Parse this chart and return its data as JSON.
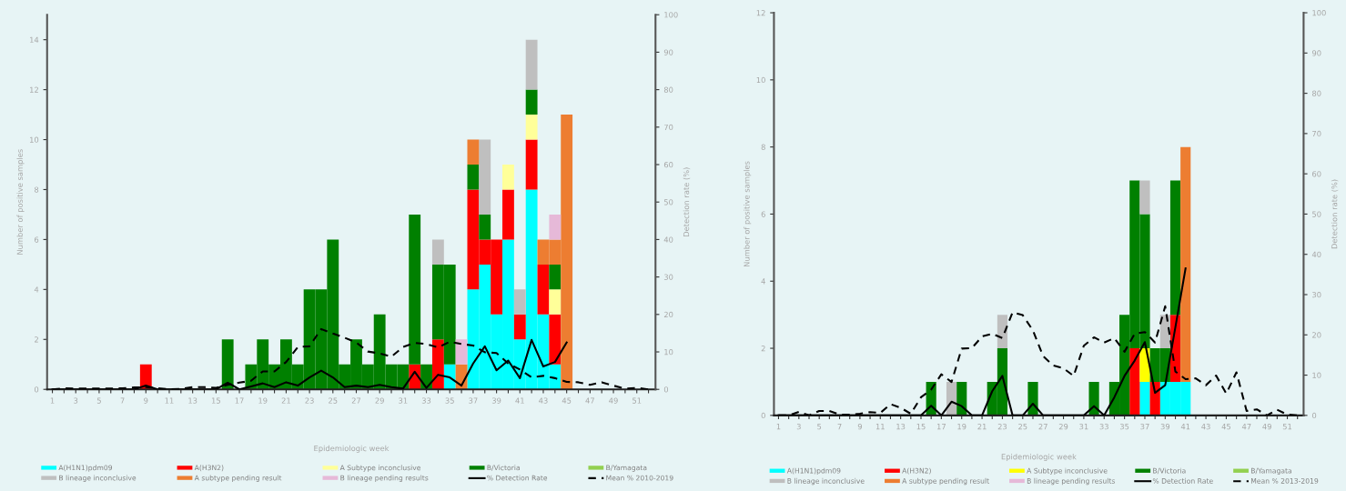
{
  "chart_data": [
    {
      "type": "bar",
      "stacked": true,
      "xlabel": "Epidemiologic week",
      "ylabel": "Number of positive samples",
      "y2label": "Detection rate (%)",
      "categories": [
        "1",
        null,
        "3",
        null,
        "5",
        null,
        "7",
        null,
        "9",
        null,
        "11",
        null,
        "13",
        null,
        "15",
        null,
        "17",
        null,
        "19",
        null,
        "21",
        null,
        "23",
        null,
        "25",
        null,
        "27",
        null,
        "29",
        null,
        "31",
        null,
        "33",
        null,
        "35",
        null,
        "37",
        null,
        "39",
        null,
        "41",
        null,
        "43",
        null,
        "45",
        null,
        "47",
        null,
        "49",
        null,
        "51",
        null
      ],
      "ylim": [
        0,
        15
      ],
      "yticks": [
        0,
        2,
        4,
        6,
        8,
        10,
        12,
        14
      ],
      "y2lim": [
        0,
        100
      ],
      "y2ticks": [
        0,
        10,
        20,
        30,
        40,
        50,
        60,
        70,
        80,
        90,
        100
      ],
      "legend": "bottom",
      "grid": false,
      "series": [
        {
          "name": "A(H1N1)pdm09",
          "color": "#00ffff",
          "values": [
            null,
            null,
            null,
            null,
            null,
            null,
            null,
            null,
            null,
            null,
            null,
            null,
            null,
            null,
            null,
            null,
            null,
            null,
            null,
            null,
            null,
            null,
            null,
            null,
            null,
            null,
            null,
            null,
            null,
            null,
            null,
            null,
            null,
            null,
            1,
            null,
            4,
            5,
            3,
            6,
            2,
            8,
            3,
            1,
            null,
            null,
            null,
            null,
            null,
            null,
            null,
            null
          ]
        },
        {
          "name": "A(H3N2)",
          "color": "#ff0000",
          "values": [
            null,
            null,
            null,
            null,
            null,
            null,
            null,
            null,
            1,
            null,
            null,
            null,
            null,
            null,
            null,
            null,
            null,
            null,
            null,
            null,
            null,
            null,
            null,
            null,
            null,
            null,
            null,
            null,
            null,
            null,
            null,
            1,
            null,
            2,
            null,
            null,
            4,
            1,
            3,
            2,
            1,
            2,
            2,
            2,
            null,
            null,
            null,
            null,
            null,
            null,
            null,
            null
          ]
        },
        {
          "name": "A Subtype inconclusive",
          "color": "#ffff99",
          "values": [
            null,
            null,
            null,
            null,
            null,
            null,
            null,
            null,
            null,
            null,
            null,
            null,
            null,
            null,
            null,
            null,
            null,
            null,
            null,
            null,
            null,
            null,
            null,
            null,
            null,
            null,
            null,
            null,
            null,
            null,
            null,
            null,
            null,
            null,
            null,
            null,
            null,
            null,
            null,
            1,
            null,
            1,
            null,
            1,
            null,
            null,
            null,
            null,
            null,
            null,
            null,
            null
          ]
        },
        {
          "name": "B/Victoria",
          "color": "#008000",
          "values": [
            null,
            null,
            null,
            null,
            null,
            null,
            null,
            null,
            null,
            null,
            null,
            null,
            null,
            null,
            null,
            2,
            null,
            1,
            2,
            1,
            2,
            1,
            4,
            4,
            6,
            1,
            2,
            1,
            3,
            1,
            1,
            6,
            1,
            3,
            4,
            null,
            1,
            1,
            null,
            null,
            null,
            1,
            null,
            1,
            null,
            null,
            null,
            null,
            null,
            null,
            null,
            null
          ]
        },
        {
          "name": "B/Yamagata",
          "color": "#92d050",
          "values": [
            null,
            null,
            null,
            null,
            null,
            null,
            null,
            null,
            null,
            null,
            null,
            null,
            null,
            null,
            null,
            null,
            null,
            null,
            null,
            null,
            null,
            null,
            null,
            null,
            null,
            null,
            null,
            null,
            null,
            null,
            null,
            null,
            null,
            null,
            null,
            null,
            null,
            null,
            null,
            null,
            null,
            null,
            null,
            null,
            null,
            null,
            null,
            null,
            null,
            null,
            null,
            null
          ]
        },
        {
          "name": "B lineage inconclusive",
          "color": "#bfbfbf",
          "values": [
            null,
            null,
            null,
            null,
            null,
            null,
            null,
            null,
            null,
            null,
            null,
            null,
            null,
            null,
            null,
            null,
            null,
            null,
            null,
            null,
            null,
            null,
            null,
            null,
            null,
            null,
            null,
            null,
            null,
            null,
            null,
            null,
            null,
            1,
            null,
            null,
            null,
            3,
            null,
            null,
            1,
            2,
            null,
            null,
            null,
            null,
            null,
            null,
            null,
            null,
            null,
            null
          ]
        },
        {
          "name": "A subtype pending result",
          "color": "#ed7d31",
          "values": [
            null,
            null,
            null,
            null,
            null,
            null,
            null,
            null,
            null,
            null,
            null,
            null,
            null,
            null,
            null,
            null,
            null,
            null,
            null,
            null,
            null,
            null,
            null,
            null,
            null,
            null,
            null,
            null,
            null,
            null,
            null,
            null,
            null,
            null,
            null,
            1,
            1,
            null,
            null,
            null,
            null,
            null,
            1,
            1,
            11,
            null,
            null,
            null,
            null,
            null,
            null,
            null
          ]
        },
        {
          "name": "B lineage pending results",
          "color": "#e6b9d8",
          "values": [
            null,
            null,
            null,
            null,
            null,
            null,
            null,
            null,
            null,
            null,
            null,
            null,
            null,
            null,
            null,
            null,
            null,
            null,
            null,
            null,
            null,
            null,
            null,
            null,
            null,
            null,
            null,
            null,
            null,
            null,
            null,
            null,
            null,
            null,
            null,
            1,
            null,
            null,
            null,
            null,
            null,
            null,
            null,
            1,
            null,
            null,
            null,
            null,
            null,
            null,
            null,
            null
          ]
        },
        {
          "name": "% Detection Rate",
          "type": "line",
          "axis": "y2",
          "color": "#000000",
          "line_style": "solid",
          "values": [
            0,
            0,
            0,
            0,
            0,
            0,
            0,
            0,
            1.0,
            0,
            0,
            0,
            0,
            0,
            0,
            1.8,
            0,
            0.8,
            1.6,
            0.6,
            1.9,
            1.0,
            3.2,
            5.0,
            3.2,
            0.6,
            1.0,
            0.6,
            1.2,
            0.6,
            0.2,
            4.7,
            0.4,
            3.9,
            3.2,
            1.0,
            6.9,
            11.5,
            5.1,
            7.7,
            3.0,
            13.2,
            6.1,
            7.3,
            12.5,
            null,
            null,
            null,
            null,
            null,
            null,
            null
          ]
        },
        {
          "name": "Mean % 2010-2019",
          "type": "line",
          "axis": "y2",
          "color": "#000000",
          "line_style": "dashed",
          "values": [
            0,
            0.3,
            0.2,
            0.2,
            0.2,
            0.2,
            0.3,
            0.5,
            0.6,
            0.3,
            0,
            0.1,
            0.6,
            0.6,
            0.4,
            1.2,
            1.8,
            2.3,
            4.8,
            4.8,
            7.3,
            11.3,
            11.5,
            16.1,
            14.9,
            13.8,
            12.5,
            10.1,
            9.6,
            8.7,
            11.3,
            12.4,
            12.1,
            11.2,
            12.7,
            12.1,
            11.7,
            9.9,
            9.7,
            6.9,
            5.3,
            3.2,
            3.6,
            3.0,
            2.0,
            1.9,
            1.2,
            1.9,
            1.0,
            0.2,
            0.4,
            0
          ]
        }
      ]
    },
    {
      "type": "bar",
      "stacked": true,
      "xlabel": "Epidemiologic week",
      "ylabel": "Number of positive samples",
      "y2label": "Detection rate (%)",
      "categories": [
        "1",
        null,
        "3",
        null,
        "5",
        null,
        "7",
        null,
        "9",
        null,
        "11",
        null,
        "13",
        null,
        "15",
        null,
        "17",
        null,
        "19",
        null,
        "21",
        null,
        "23",
        null,
        "25",
        null,
        "27",
        null,
        "29",
        null,
        "31",
        null,
        "33",
        null,
        "35",
        null,
        "37",
        null,
        "39",
        null,
        "41",
        null,
        "43",
        null,
        "45",
        null,
        "47",
        null,
        "49",
        null,
        "51",
        null
      ],
      "ylim": [
        0,
        12
      ],
      "yticks": [
        0,
        2,
        4,
        6,
        8,
        10,
        12
      ],
      "y2lim": [
        0,
        100
      ],
      "y2ticks": [
        0,
        10,
        20,
        30,
        40,
        50,
        60,
        70,
        80,
        90,
        100
      ],
      "legend": "bottom",
      "grid": false,
      "series": [
        {
          "name": "A(H1N1)pdm09",
          "color": "#00ffff",
          "values": [
            null,
            null,
            null,
            null,
            null,
            null,
            null,
            null,
            null,
            null,
            null,
            null,
            null,
            null,
            null,
            null,
            null,
            null,
            null,
            null,
            null,
            null,
            null,
            null,
            null,
            null,
            null,
            null,
            null,
            null,
            null,
            null,
            null,
            null,
            null,
            null,
            1,
            null,
            1,
            1,
            1,
            null,
            null,
            null,
            null,
            null,
            null,
            null,
            null,
            null,
            null,
            null
          ]
        },
        {
          "name": "A(H3N2)",
          "color": "#ff0000",
          "values": [
            null,
            null,
            null,
            null,
            null,
            null,
            null,
            null,
            null,
            null,
            null,
            null,
            null,
            null,
            null,
            null,
            null,
            null,
            null,
            null,
            null,
            null,
            null,
            null,
            null,
            null,
            null,
            null,
            null,
            null,
            null,
            null,
            null,
            null,
            null,
            2,
            null,
            1,
            null,
            2,
            null,
            null,
            null,
            null,
            null,
            null,
            null,
            null,
            null,
            null,
            null,
            null
          ]
        },
        {
          "name": "A Subtype inconclusive",
          "color": "#ffff00",
          "values": [
            null,
            null,
            null,
            null,
            null,
            null,
            null,
            null,
            null,
            null,
            null,
            null,
            null,
            null,
            null,
            null,
            null,
            null,
            null,
            null,
            null,
            null,
            null,
            null,
            null,
            null,
            null,
            null,
            null,
            null,
            null,
            null,
            null,
            null,
            null,
            null,
            1,
            null,
            null,
            null,
            null,
            null,
            null,
            null,
            null,
            null,
            null,
            null,
            null,
            null,
            null,
            null
          ]
        },
        {
          "name": "B/Victoria",
          "color": "#008000",
          "values": [
            null,
            null,
            null,
            null,
            null,
            null,
            null,
            null,
            null,
            null,
            null,
            null,
            null,
            null,
            null,
            1,
            null,
            null,
            1,
            null,
            null,
            1,
            2,
            null,
            null,
            1,
            null,
            null,
            null,
            null,
            null,
            1,
            null,
            1,
            3,
            5,
            4,
            1,
            1,
            4,
            null,
            null,
            null,
            null,
            null,
            null,
            null,
            null,
            null,
            null,
            null,
            null
          ]
        },
        {
          "name": "B/Yamagata",
          "color": "#92d050",
          "values": [
            null,
            null,
            null,
            null,
            null,
            null,
            null,
            null,
            null,
            null,
            null,
            null,
            null,
            null,
            null,
            null,
            null,
            null,
            null,
            null,
            null,
            null,
            null,
            null,
            null,
            null,
            null,
            null,
            null,
            null,
            null,
            null,
            null,
            null,
            null,
            null,
            null,
            null,
            null,
            null,
            null,
            null,
            null,
            null,
            null,
            null,
            null,
            null,
            null,
            null,
            null,
            null
          ]
        },
        {
          "name": "B lineage inconclusive",
          "color": "#bfbfbf",
          "values": [
            null,
            null,
            null,
            null,
            null,
            null,
            null,
            null,
            null,
            null,
            null,
            null,
            null,
            null,
            null,
            null,
            null,
            1,
            null,
            null,
            null,
            null,
            1,
            null,
            null,
            null,
            null,
            null,
            null,
            null,
            null,
            null,
            null,
            null,
            null,
            null,
            1,
            null,
            1,
            null,
            null,
            null,
            null,
            null,
            null,
            null,
            null,
            null,
            null,
            null,
            null,
            null
          ]
        },
        {
          "name": "A subtype pending result",
          "color": "#ed7d31",
          "values": [
            null,
            null,
            null,
            null,
            null,
            null,
            null,
            null,
            null,
            null,
            null,
            null,
            null,
            null,
            null,
            null,
            null,
            null,
            null,
            null,
            null,
            null,
            null,
            null,
            null,
            null,
            null,
            null,
            null,
            null,
            null,
            null,
            null,
            null,
            null,
            null,
            null,
            null,
            null,
            null,
            7,
            null,
            null,
            null,
            null,
            null,
            null,
            null,
            null,
            null,
            null,
            null
          ]
        },
        {
          "name": "B lineage pending results",
          "color": "#e6b9d8",
          "values": [
            null,
            null,
            null,
            null,
            null,
            null,
            null,
            null,
            null,
            null,
            null,
            null,
            null,
            null,
            null,
            null,
            null,
            null,
            null,
            null,
            null,
            null,
            null,
            null,
            null,
            null,
            null,
            null,
            null,
            null,
            null,
            null,
            null,
            null,
            null,
            null,
            null,
            null,
            null,
            null,
            null,
            null,
            null,
            null,
            null,
            null,
            null,
            null,
            null,
            null,
            null,
            null
          ]
        },
        {
          "name": "% Detection Rate",
          "type": "line",
          "axis": "y2",
          "color": "#000000",
          "line_style": "solid",
          "values": [
            0,
            0,
            0,
            0,
            0,
            0,
            0,
            0,
            0,
            0,
            0,
            0,
            0,
            0,
            0,
            2.4,
            0,
            3.4,
            2.3,
            0,
            0,
            6.0,
            9.8,
            0,
            0,
            2.9,
            0,
            0,
            0,
            0,
            0,
            2.3,
            0,
            4.5,
            9.8,
            13.6,
            18.2,
            5.6,
            7.5,
            21.9,
            36.5,
            null,
            null,
            null,
            null,
            null,
            null,
            null,
            null,
            null,
            null,
            null
          ]
        },
        {
          "name": "Mean % 2013-2019",
          "type": "line",
          "axis": "y2",
          "color": "#000000",
          "line_style": "dashed",
          "values": [
            0,
            0,
            0.9,
            0,
            1.1,
            1.1,
            0.2,
            0.2,
            0.4,
            0.8,
            0.6,
            2.8,
            1.9,
            0.4,
            4.5,
            6.4,
            10.2,
            8.3,
            16.6,
            16.7,
            19.6,
            20.3,
            19.2,
            25.6,
            24.9,
            21.1,
            14.7,
            12.4,
            11.7,
            9.8,
            17.3,
            19.4,
            18.1,
            19.2,
            15.8,
            20.3,
            20.7,
            18.1,
            27.1,
            10.9,
            9.0,
            9.2,
            7.5,
            9.9,
            5.4,
            10.7,
            1.1,
            1.5,
            0,
            1.4,
            0.2,
            0
          ]
        }
      ]
    }
  ]
}
